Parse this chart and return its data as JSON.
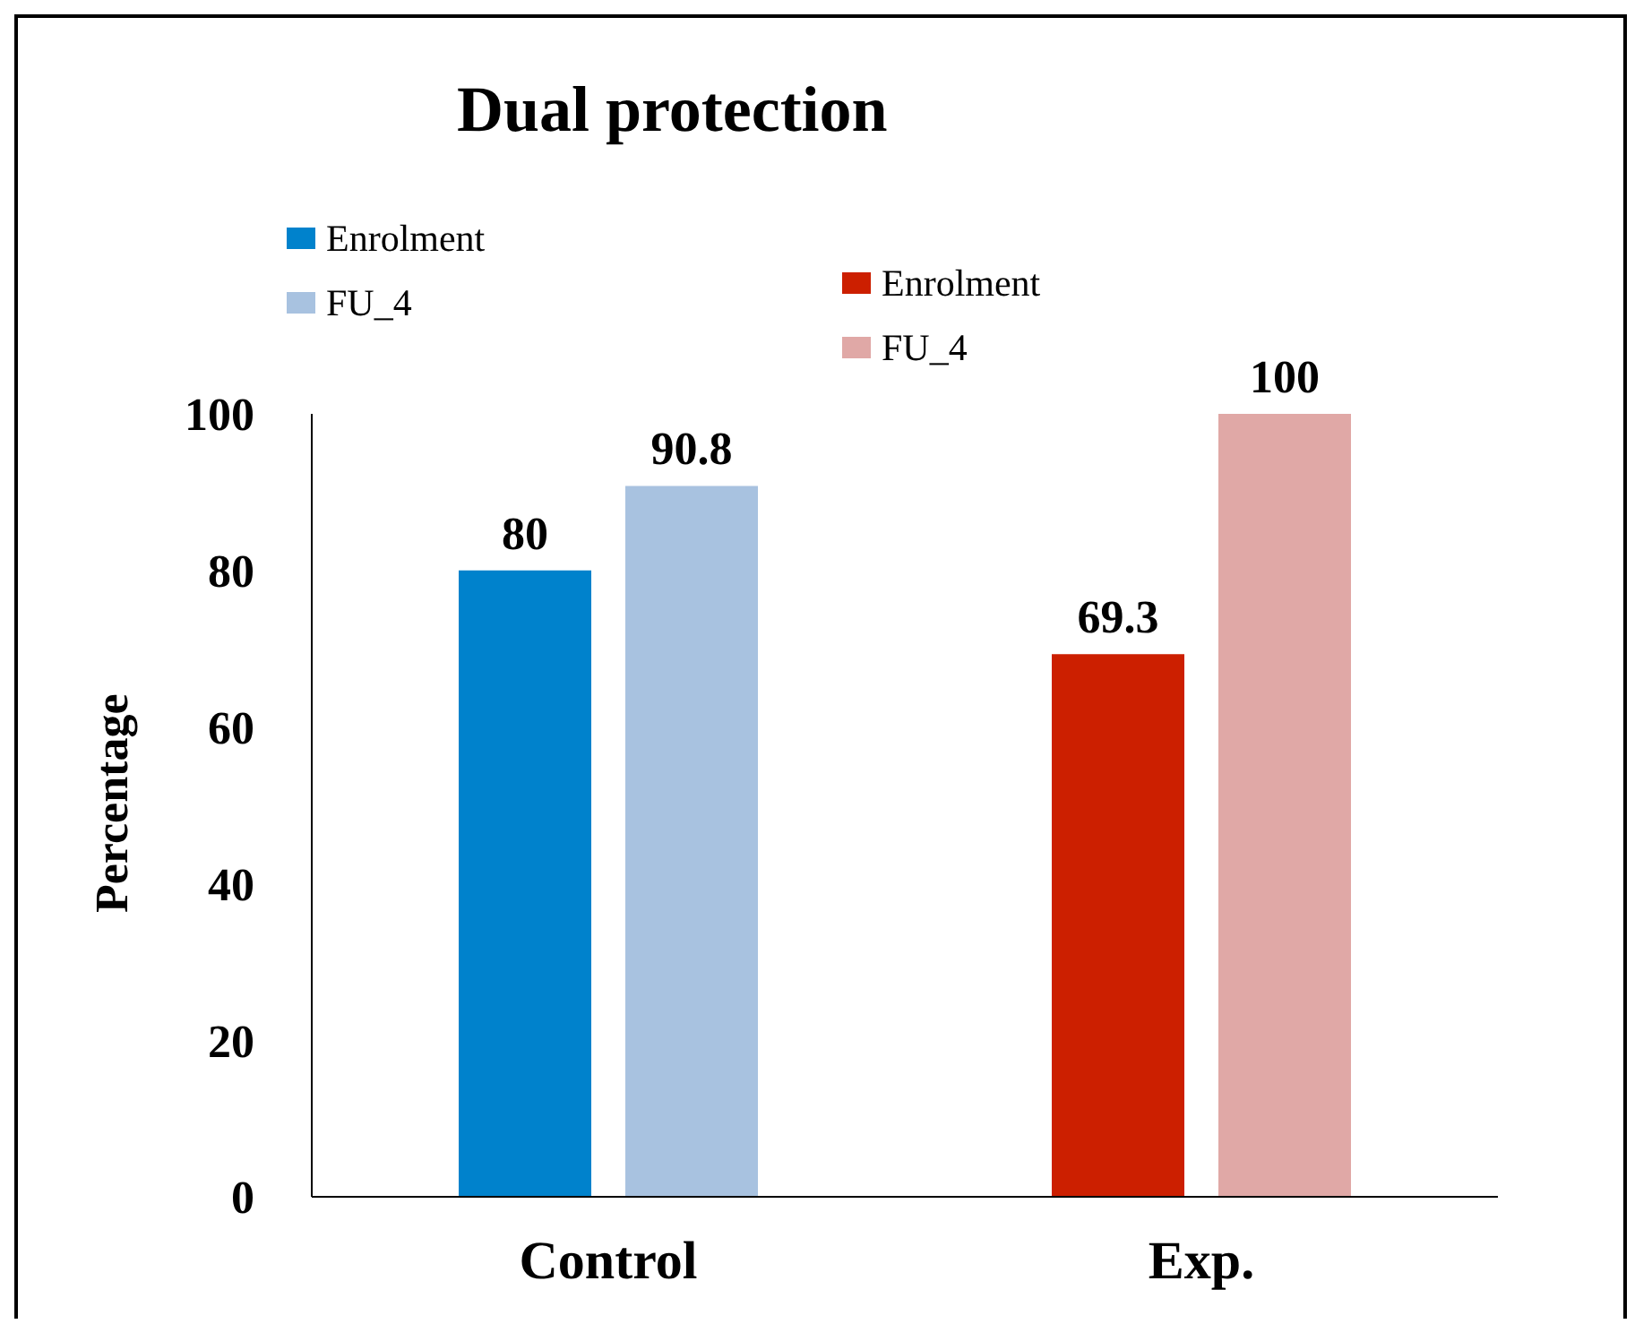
{
  "chart_data": {
    "type": "bar",
    "title": "Dual protection",
    "ylabel": "Percentage",
    "categories": [
      "Control",
      "Exp."
    ],
    "series": [
      {
        "name": "Enrolment",
        "colors": [
          "#0082cc",
          "#cc1f00"
        ],
        "values": [
          80,
          69.3
        ]
      },
      {
        "name": "FU_4",
        "colors": [
          "#a8c2e0",
          "#e0a8a6"
        ],
        "values": [
          90.8,
          100
        ]
      }
    ],
    "ylim": [
      0,
      100
    ],
    "yticks": [
      0,
      20,
      40,
      60,
      80,
      100
    ],
    "grid": false,
    "legend": "top left",
    "data_labels": true
  }
}
